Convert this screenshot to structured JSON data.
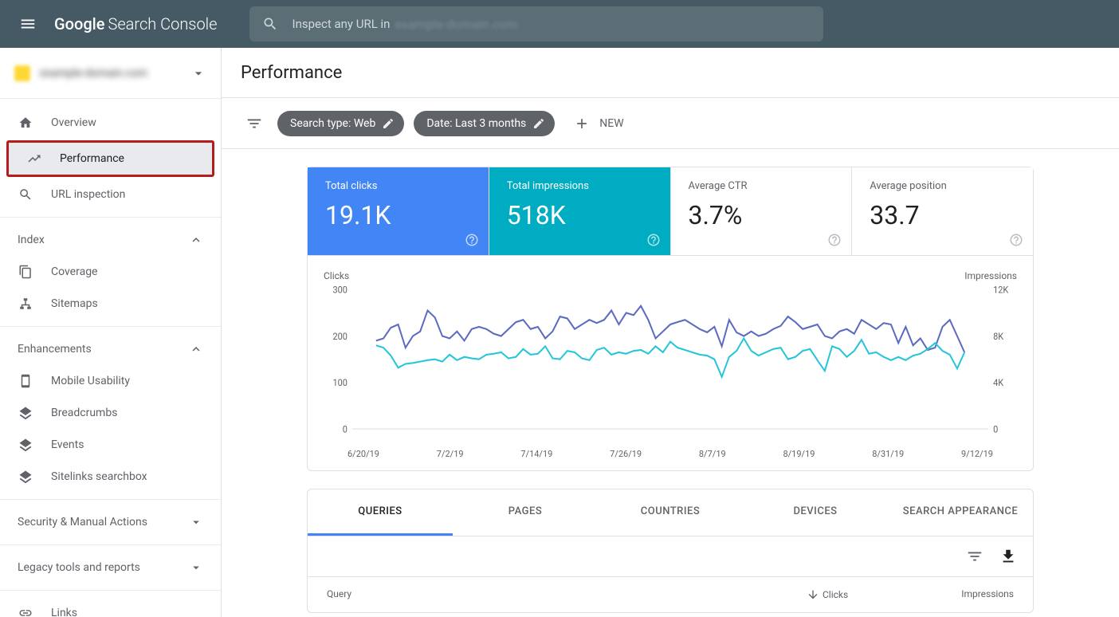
{
  "header": {
    "logo_google": "Google",
    "logo_text": "Search Console",
    "search_placeholder": "Inspect any URL in",
    "search_domain": "example-domain.com"
  },
  "property": {
    "name": "example-domain.com"
  },
  "sidebar": {
    "items": [
      {
        "label": "Overview",
        "icon": "home"
      },
      {
        "label": "Performance",
        "icon": "trend",
        "active": true,
        "highlighted": true
      },
      {
        "label": "URL inspection",
        "icon": "search"
      }
    ],
    "index_label": "Index",
    "index_items": [
      {
        "label": "Coverage",
        "icon": "copy"
      },
      {
        "label": "Sitemaps",
        "icon": "tree"
      }
    ],
    "enh_label": "Enhancements",
    "enh_items": [
      {
        "label": "Mobile Usability",
        "icon": "phone"
      },
      {
        "label": "Breadcrumbs",
        "icon": "layers"
      },
      {
        "label": "Events",
        "icon": "layers"
      },
      {
        "label": "Sitelinks searchbox",
        "icon": "layers"
      }
    ],
    "security_label": "Security & Manual Actions",
    "legacy_label": "Legacy tools and reports",
    "links_label": "Links"
  },
  "page": {
    "title": "Performance"
  },
  "filters": {
    "search_type": "Search type: Web",
    "date": "Date: Last 3 months",
    "new_label": "NEW"
  },
  "metrics": [
    {
      "label": "Total clicks",
      "value": "19.1K",
      "color": "blue"
    },
    {
      "label": "Total impressions",
      "value": "518K",
      "color": "teal"
    },
    {
      "label": "Average CTR",
      "value": "3.7%",
      "color": "white"
    },
    {
      "label": "Average position",
      "value": "33.7",
      "color": "white"
    }
  ],
  "chart": {
    "left_label": "Clicks",
    "right_label": "Impressions",
    "y_left": {
      "min": 0,
      "max": 300,
      "ticks": [
        300,
        200,
        100,
        0
      ]
    },
    "y_right": {
      "min": 0,
      "max": 12000,
      "ticks": [
        "12K",
        "8K",
        "4K",
        "0"
      ]
    },
    "x_labels": [
      "6/20/19",
      "7/2/19",
      "7/14/19",
      "7/26/19",
      "8/7/19",
      "8/19/19",
      "8/31/19",
      "9/12/19"
    ],
    "series": [
      {
        "name": "clicks",
        "color": "#5c6bc0",
        "width": 2,
        "values": [
          190,
          195,
          218,
          225,
          175,
          200,
          210,
          255,
          240,
          200,
          195,
          210,
          190,
          215,
          220,
          215,
          205,
          200,
          215,
          230,
          235,
          215,
          220,
          195,
          210,
          242,
          238,
          215,
          225,
          235,
          228,
          235,
          255,
          225,
          250,
          245,
          265,
          235,
          195,
          210,
          225,
          230,
          235,
          225,
          215,
          208,
          220,
          178,
          235,
          208,
          200,
          210,
          200,
          205,
          215,
          222,
          242,
          230,
          215,
          220,
          225,
          200,
          195,
          210,
          215,
          205,
          235,
          225,
          215,
          228,
          225,
          185,
          220,
          180,
          195,
          170,
          175,
          220,
          235,
          200,
          165
        ]
      },
      {
        "name": "impressions",
        "color": "#26c6da",
        "width": 2,
        "values_scaled": [
          180,
          175,
          158,
          132,
          140,
          142,
          145,
          148,
          150,
          145,
          160,
          148,
          155,
          152,
          150,
          160,
          162,
          165,
          152,
          155,
          172,
          160,
          162,
          178,
          152,
          150,
          168,
          165,
          152,
          148,
          170,
          175,
          160,
          165,
          162,
          168,
          170,
          162,
          178,
          165,
          188,
          175,
          170,
          165,
          160,
          158,
          150,
          112,
          155,
          168,
          195,
          168,
          158,
          165,
          172,
          175,
          150,
          155,
          168,
          172,
          148,
          125,
          178,
          172,
          155,
          168,
          192,
          162,
          165,
          155,
          148,
          155,
          148,
          158,
          162,
          172,
          185,
          168,
          160,
          130,
          165
        ]
      }
    ]
  },
  "tabs": {
    "items": [
      "QUERIES",
      "PAGES",
      "COUNTRIES",
      "DEVICES",
      "SEARCH APPEARANCE"
    ],
    "active": 0
  },
  "table": {
    "col_query": "Query",
    "col_clicks": "Clicks",
    "col_impressions": "Impressions"
  },
  "colors": {
    "topbar": "#455a64",
    "blue": "#4285f4",
    "teal": "#00acc1",
    "line_clicks": "#5c6bc0",
    "line_impr": "#26c6da",
    "highlight": "#b71c1c"
  }
}
